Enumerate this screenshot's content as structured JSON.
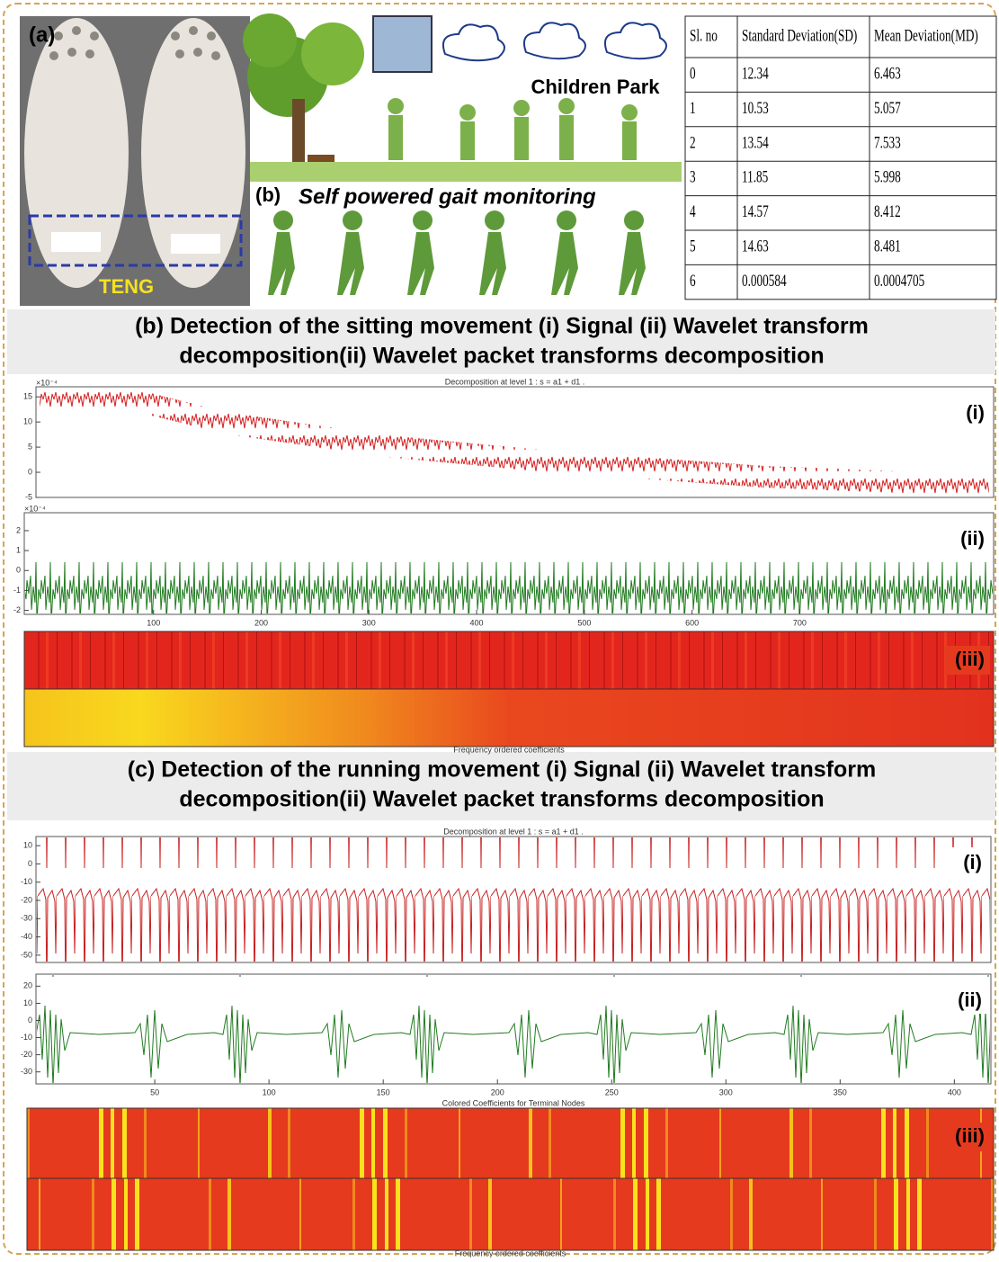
{
  "panel_a": {
    "label": "(a)",
    "tag": "TENG"
  },
  "panel_b": {
    "label": "(b)",
    "scene": "Children Park",
    "caption": "Self powered gait monitoring"
  },
  "table": {
    "columns": [
      "Sl. no",
      "Standard Deviation(SD)",
      "Mean Deviation(MD)"
    ],
    "rows": [
      [
        "0",
        "12.34",
        "6.463"
      ],
      [
        "1",
        "10.53",
        "5.057"
      ],
      [
        "2",
        "13.54",
        "7.533"
      ],
      [
        "3",
        "11.85",
        "5.998"
      ],
      [
        "4",
        "14.57",
        "8.412"
      ],
      [
        "5",
        "14.63",
        "8.481"
      ],
      [
        "6",
        "0.000584",
        "0.0004705"
      ]
    ]
  },
  "sections": [
    {
      "title_lines": [
        "(b) Detection of the sitting movement (i) Signal (ii) Wavelet transform",
        "decomposition(ii) Wavelet packet transforms decomposition"
      ],
      "signal": {
        "title": "Decomposition at level 1 : s = a1 + d1 .",
        "exponent": "×10⁻⁴",
        "label": "(i)",
        "ylim": [
          -5,
          17
        ],
        "yticks": [
          -5,
          0,
          5,
          10,
          15
        ]
      },
      "wavelet": {
        "exponent": "×10⁻⁴",
        "label": "(ii)",
        "ylim": [
          -2.2,
          2.9
        ],
        "yticks": [
          -2,
          -1,
          0,
          1,
          2
        ],
        "xlim": [
          -20,
          880
        ],
        "xticks": [
          100,
          200,
          300,
          400,
          500,
          600,
          700
        ]
      },
      "packet": {
        "label": "(iii)",
        "caption": "Frequency ordered coefficients"
      }
    },
    {
      "title_lines": [
        "(c) Detection of the running movement (i) Signal (ii) Wavelet transform",
        "decomposition(ii) Wavelet packet transforms decomposition"
      ],
      "signal": {
        "title": "Decomposition at level 1 : s = a1 + d1 .",
        "label": "(i)",
        "ylim": [
          -54,
          15
        ],
        "yticks": [
          -50,
          -40,
          -30,
          -20,
          -10,
          0,
          10
        ]
      },
      "wavelet": {
        "label": "(ii)",
        "ylim": [
          -37,
          27
        ],
        "yticks": [
          -30,
          -20,
          -10,
          0,
          10,
          20
        ],
        "xlim": [
          -2,
          416
        ],
        "xticks": [
          50,
          100,
          150,
          200,
          250,
          300,
          350,
          400
        ],
        "caption": "Colored Coefficients for Terminal Nodes"
      },
      "packet": {
        "label": "(iii)",
        "caption": "Frequency ordered coefficients"
      }
    }
  ]
}
